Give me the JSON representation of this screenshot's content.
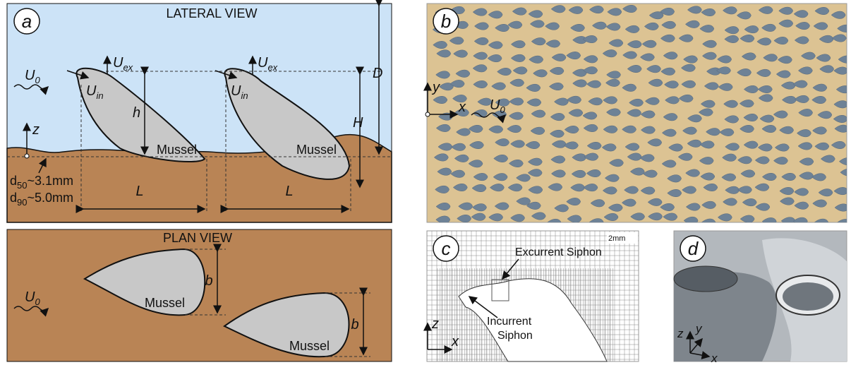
{
  "panel_a": {
    "label": "a",
    "lateral": {
      "title": "LATERAL VIEW",
      "flow": {
        "base": "U",
        "sub": "0"
      },
      "excurrent_1": {
        "base": "U",
        "sub": "ex"
      },
      "excurrent_2": {
        "base": "U",
        "sub": "ex"
      },
      "incurrent_1": {
        "base": "U",
        "sub": "in"
      },
      "incurrent_2": {
        "base": "U",
        "sub": "in"
      },
      "h": "h",
      "D": "D",
      "H": "H",
      "z": "z",
      "mussel_1": "Mussel",
      "mussel_2": "Mussel",
      "d50": {
        "base": "d",
        "sub": "50",
        "tail": "~3.1mm"
      },
      "d90": {
        "base": "d",
        "sub": "90",
        "tail": "~5.0mm"
      },
      "L_1": "L",
      "L_2": "L"
    },
    "plan": {
      "title": "PLAN VIEW",
      "flow": {
        "base": "U",
        "sub": "0"
      },
      "b_1": "b",
      "b_2": "b",
      "mussel_1": "Mussel",
      "mussel_2": "Mussel"
    }
  },
  "panel_b": {
    "label": "b",
    "y": "y",
    "x": "x",
    "flow": {
      "base": "U",
      "sub": "0"
    }
  },
  "panel_c": {
    "label": "c",
    "scale": "2mm",
    "excurrent": "Excurrent Siphon",
    "incurrent_1": "Incurrent",
    "incurrent_2": "Siphon",
    "z": "z",
    "x": "x"
  },
  "panel_d": {
    "label": "d",
    "z": "z",
    "y": "y",
    "x": "x"
  }
}
